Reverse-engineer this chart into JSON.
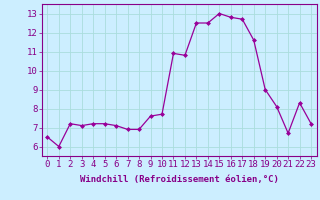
{
  "x": [
    0,
    1,
    2,
    3,
    4,
    5,
    6,
    7,
    8,
    9,
    10,
    11,
    12,
    13,
    14,
    15,
    16,
    17,
    18,
    19,
    20,
    21,
    22,
    23
  ],
  "y": [
    6.5,
    6.0,
    7.2,
    7.1,
    7.2,
    7.2,
    7.1,
    6.9,
    6.9,
    7.6,
    7.7,
    10.9,
    10.8,
    12.5,
    12.5,
    13.0,
    12.8,
    12.7,
    11.6,
    9.0,
    8.1,
    6.7,
    8.3,
    7.2
  ],
  "line_color": "#990099",
  "marker": "D",
  "marker_size": 2.0,
  "background_color": "#cceeff",
  "grid_color": "#aadddd",
  "xlabel": "Windchill (Refroidissement éolien,°C)",
  "xlabel_fontsize": 6.5,
  "ylabel_ticks": [
    6,
    7,
    8,
    9,
    10,
    11,
    12,
    13
  ],
  "xlim": [
    -0.5,
    23.5
  ],
  "ylim": [
    5.5,
    13.5
  ],
  "tick_fontsize": 6.5,
  "spine_color": "#880088",
  "label_color": "#880088"
}
